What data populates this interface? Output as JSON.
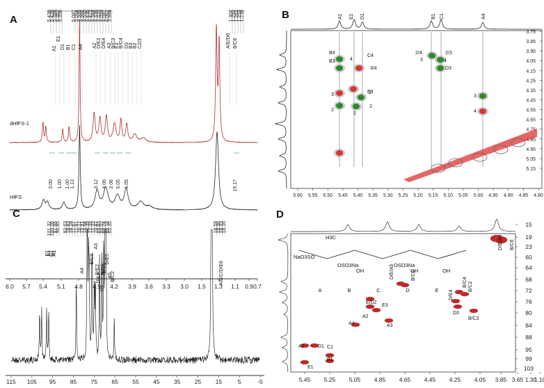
{
  "chart_data": [
    {
      "panel": "A",
      "type": "line",
      "xlim": [
        6.0,
        0.7
      ],
      "xticks": [
        "6.0",
        "5.7",
        "5.4",
        "5.1",
        "4.8",
        "4.5",
        "4.2",
        "3.9",
        "3.6",
        "3.3",
        "3.0",
        "1.5",
        "1.3",
        "1.1",
        "0.9",
        "0.7"
      ],
      "series": [
        {
          "name": "dHfFS-1",
          "color": "#b03030"
        },
        {
          "name": "HfFS",
          "color": "#222222"
        }
      ],
      "peak_labels": [
        "A1",
        "E1",
        "D1",
        "B1",
        "C1",
        "A4",
        "A2",
        "D/E2",
        "D/E4",
        "A3",
        "B/C3",
        "E3",
        "B/C4",
        "D3",
        "B3",
        "B2",
        "C2/3",
        "A/E/D6",
        "B/C6"
      ],
      "ppm_values": [
        "5.436",
        "5.426",
        "5.386",
        "5.362",
        "5.356",
        "5.087",
        "5.094",
        "4.986",
        "4.966",
        "4.550",
        "4.436",
        "4.423",
        "4.348",
        "4.336",
        "4.320",
        "4.098",
        "4.087",
        "4.062",
        "3.984",
        "1.302",
        "1.292",
        "1.262",
        "1.253",
        "1.236"
      ],
      "integrals": [
        "3.00",
        "1.00",
        "1.00",
        "1.13",
        "3.12",
        "4.06",
        "3.06",
        "5.05",
        "4.05",
        "15.17"
      ]
    },
    {
      "panel": "B",
      "type": "heatmap",
      "xlim": [
        5.6,
        4.8
      ],
      "ylim": [
        3.75,
        5.15
      ],
      "xticks": [
        "5.60",
        "5.55",
        "5.50",
        "5.45",
        "5.40",
        "5.35",
        "5.30",
        "5.25",
        "5.20",
        "5.15",
        "5.10",
        "5.05",
        "5.00",
        "4.95",
        "4.90",
        "4.85",
        "4.80"
      ],
      "yticks": [
        "3.75",
        "3.85",
        "3.95",
        "4.05",
        "4.15",
        "4.25",
        "4.35",
        "4.45",
        "4.55",
        "4.65",
        "4.75",
        "4.85",
        "4.95",
        "5.05",
        "5.15"
      ],
      "top_labels": [
        "A1",
        "E1",
        "D1",
        "B1",
        "C1",
        "A4"
      ],
      "cross_labels": [
        "B4",
        "B3",
        "4",
        "C4",
        "3/4",
        "2/4",
        "2/3",
        "3",
        "4",
        "D3",
        "E3",
        "3",
        "2",
        "2",
        "2",
        "2",
        "3",
        "4"
      ]
    },
    {
      "panel": "C",
      "type": "line",
      "xlim": [
        115,
        -5
      ],
      "xticks": [
        "115",
        "105",
        "95",
        "85",
        "75",
        "65",
        "55",
        "45",
        "35",
        "25",
        "15",
        "5",
        "-5"
      ],
      "ppm_values": [
        "101.32",
        "100.26",
        "97.95",
        "96.85",
        "83.63",
        "78.43",
        "78.18",
        "77.67",
        "77.41",
        "76.11",
        "75.91",
        "74.94",
        "74.39",
        "72.39",
        "71.33",
        "70.41",
        "69.83",
        "69.52",
        "69.24",
        "69.18",
        "65.35",
        "18.59",
        "18.36",
        "18.33",
        "18.16"
      ],
      "peak_labels": [
        "E1",
        "B1",
        "C1",
        "D1",
        "A1",
        "A4",
        "B/C3",
        "A3",
        "D/E2",
        "D/E4",
        "D3",
        "B/C4",
        "B/C5",
        "D/E5",
        "A5",
        "B/C2",
        "A/B/C/D/E6"
      ]
    },
    {
      "panel": "D",
      "type": "heatmap",
      "xlim": [
        5.6,
        1.1
      ],
      "ylim": [
        15,
        103
      ],
      "xticks": [
        "5.45",
        "5.25",
        "5.05",
        "4.85",
        "4.65",
        "4.45",
        "4.25",
        "4.05",
        "3.85",
        "3.65",
        "1.30",
        "1.10"
      ],
      "yticks": [
        "15",
        "19",
        "23",
        "60",
        "64",
        "68",
        "72",
        "76",
        "80",
        "84",
        "88",
        "95",
        "99",
        "103"
      ],
      "cross_labels": [
        "A1",
        "D1",
        "E1",
        "C1",
        "B1",
        "A4",
        "E/D2",
        "A2",
        "E3",
        "A3",
        "D/E/A5",
        "B/C5",
        "D/E4",
        "B/C4",
        "B/C2",
        "D3",
        "B/C3",
        "D/E/A6",
        "B/C6"
      ],
      "structure": {
        "residues": [
          "A",
          "B",
          "C",
          "D",
          "E"
        ],
        "substituents": [
          "NaO3SO",
          "OSO3Na",
          "OSO3Na",
          "OH",
          "OH",
          "OH"
        ],
        "methyl": "H3C"
      }
    }
  ]
}
